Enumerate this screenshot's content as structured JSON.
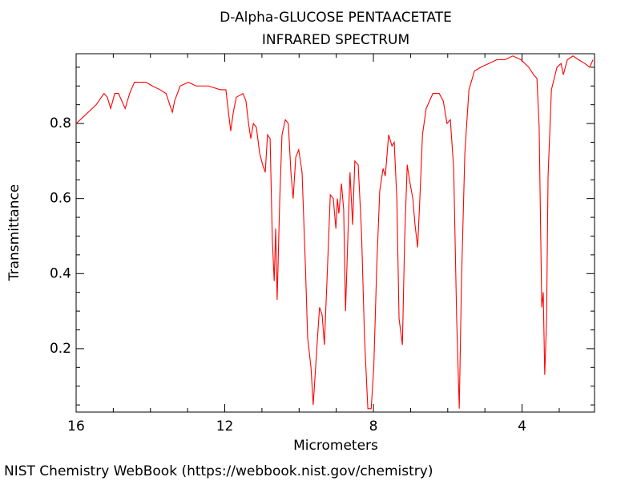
{
  "chart_data": {
    "type": "line",
    "title": "D-Alpha-GLUCOSE PENTAACETATE",
    "subtitle": "INFRARED SPECTRUM",
    "x_label": "Micrometers",
    "y_label": "Transmittance",
    "source": "NIST Chemistry WebBook (https://webbook.nist.gov/chemistry)",
    "xlim": [
      16,
      2.05
    ],
    "ylim": [
      0.031,
      0.986
    ],
    "xticks": [
      16,
      12,
      8,
      4
    ],
    "yticks": [
      0.2,
      0.4,
      0.6,
      0.8
    ],
    "minor_xticks": [
      15,
      14,
      13,
      11,
      10,
      9,
      7,
      6,
      5,
      3
    ],
    "minor_yticks": [
      0.05,
      0.1,
      0.15,
      0.25,
      0.3,
      0.35,
      0.45,
      0.5,
      0.55,
      0.65,
      0.7,
      0.75,
      0.85,
      0.9,
      0.95
    ],
    "grid": false,
    "series": [
      {
        "color": "#ff0000",
        "x": [
          16,
          15.78,
          15.46,
          15.25,
          15.16,
          15.07,
          14.96,
          14.86,
          14.77,
          14.68,
          14.56,
          14.43,
          14.27,
          14.12,
          13.95,
          13.74,
          13.58,
          13.48,
          13.41,
          13.35,
          13.2,
          12.98,
          12.77,
          12.44,
          12.12,
          11.97,
          11.9,
          11.84,
          11.77,
          11.69,
          11.51,
          11.43,
          11.36,
          11.3,
          11.23,
          11.15,
          11.06,
          10.98,
          10.91,
          10.85,
          10.78,
          10.72,
          10.67,
          10.63,
          10.59,
          10.52,
          10.46,
          10.37,
          10.29,
          10.22,
          10.16,
          10.09,
          10.01,
          9.92,
          9.83,
          9.77,
          9.68,
          9.62,
          9.53,
          9.45,
          9.38,
          9.32,
          9.25,
          9.16,
          9.08,
          9.01,
          8.97,
          8.93,
          8.86,
          8.8,
          8.75,
          8.69,
          8.63,
          8.56,
          8.5,
          8.41,
          8.32,
          8.24,
          8.15,
          8.06,
          7.99,
          7.91,
          7.83,
          7.74,
          7.68,
          7.59,
          7.5,
          7.44,
          7.37,
          7.31,
          7.22,
          7.16,
          7.09,
          7.03,
          6.94,
          6.88,
          6.81,
          6.75,
          6.68,
          6.58,
          6.4,
          6.23,
          6.12,
          6.02,
          5.93,
          5.84,
          5.76,
          5.69,
          5.63,
          5.54,
          5.43,
          5.28,
          5.11,
          4.89,
          4.68,
          4.46,
          4.25,
          4.03,
          3.82,
          3.69,
          3.6,
          3.54,
          3.47,
          3.43,
          3.39,
          3.34,
          3.3,
          3.21,
          3.06,
          2.95,
          2.89,
          2.78,
          2.63,
          2.48,
          2.31,
          2.18,
          2.09
        ],
        "values": [
          0.8,
          0.82,
          0.85,
          0.88,
          0.87,
          0.84,
          0.88,
          0.88,
          0.86,
          0.84,
          0.88,
          0.91,
          0.91,
          0.91,
          0.9,
          0.89,
          0.88,
          0.85,
          0.83,
          0.86,
          0.9,
          0.91,
          0.9,
          0.9,
          0.89,
          0.89,
          0.83,
          0.78,
          0.83,
          0.87,
          0.88,
          0.86,
          0.8,
          0.76,
          0.8,
          0.79,
          0.72,
          0.69,
          0.67,
          0.77,
          0.76,
          0.49,
          0.38,
          0.52,
          0.33,
          0.6,
          0.77,
          0.81,
          0.8,
          0.67,
          0.6,
          0.71,
          0.73,
          0.67,
          0.42,
          0.23,
          0.15,
          0.05,
          0.19,
          0.31,
          0.29,
          0.21,
          0.38,
          0.61,
          0.6,
          0.52,
          0.6,
          0.56,
          0.64,
          0.57,
          0.3,
          0.49,
          0.67,
          0.53,
          0.7,
          0.69,
          0.51,
          0.23,
          0.04,
          0.04,
          0.15,
          0.42,
          0.62,
          0.68,
          0.66,
          0.77,
          0.74,
          0.75,
          0.6,
          0.28,
          0.21,
          0.49,
          0.69,
          0.65,
          0.6,
          0.53,
          0.47,
          0.6,
          0.77,
          0.84,
          0.88,
          0.88,
          0.86,
          0.8,
          0.81,
          0.68,
          0.28,
          0.04,
          0.38,
          0.72,
          0.89,
          0.94,
          0.95,
          0.96,
          0.97,
          0.97,
          0.98,
          0.97,
          0.95,
          0.93,
          0.92,
          0.79,
          0.31,
          0.35,
          0.13,
          0.28,
          0.66,
          0.89,
          0.95,
          0.96,
          0.93,
          0.97,
          0.98,
          0.97,
          0.96,
          0.95,
          0.97
        ]
      }
    ]
  }
}
